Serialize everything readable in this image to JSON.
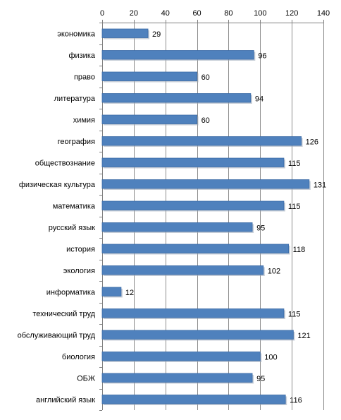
{
  "chart_data": {
    "type": "bar",
    "orientation": "horizontal",
    "x_axis_position": "top",
    "xlim": [
      0,
      140
    ],
    "xticks": [
      0,
      20,
      40,
      60,
      80,
      100,
      120,
      140
    ],
    "grid": true,
    "legend": "none",
    "title": "",
    "xlabel": "",
    "ylabel": "",
    "categories": [
      "экономика",
      "физика",
      "право",
      "литература",
      "химия",
      "география",
      "обществознание",
      "физическая культура",
      "математика",
      "русский язык",
      "история",
      "экология",
      "информатика",
      "технический труд",
      "обслуживающий труд",
      "биология",
      "ОБЖ",
      "английский язык"
    ],
    "values": [
      29,
      96,
      60,
      94,
      60,
      126,
      115,
      131,
      115,
      95,
      118,
      102,
      12,
      115,
      121,
      100,
      95,
      116
    ],
    "colors": {
      "bar": "#4f81bd",
      "bar_edge": "#3a6aa6",
      "shadow": "#9aa8b8",
      "grid": "#8c8c8c"
    }
  }
}
